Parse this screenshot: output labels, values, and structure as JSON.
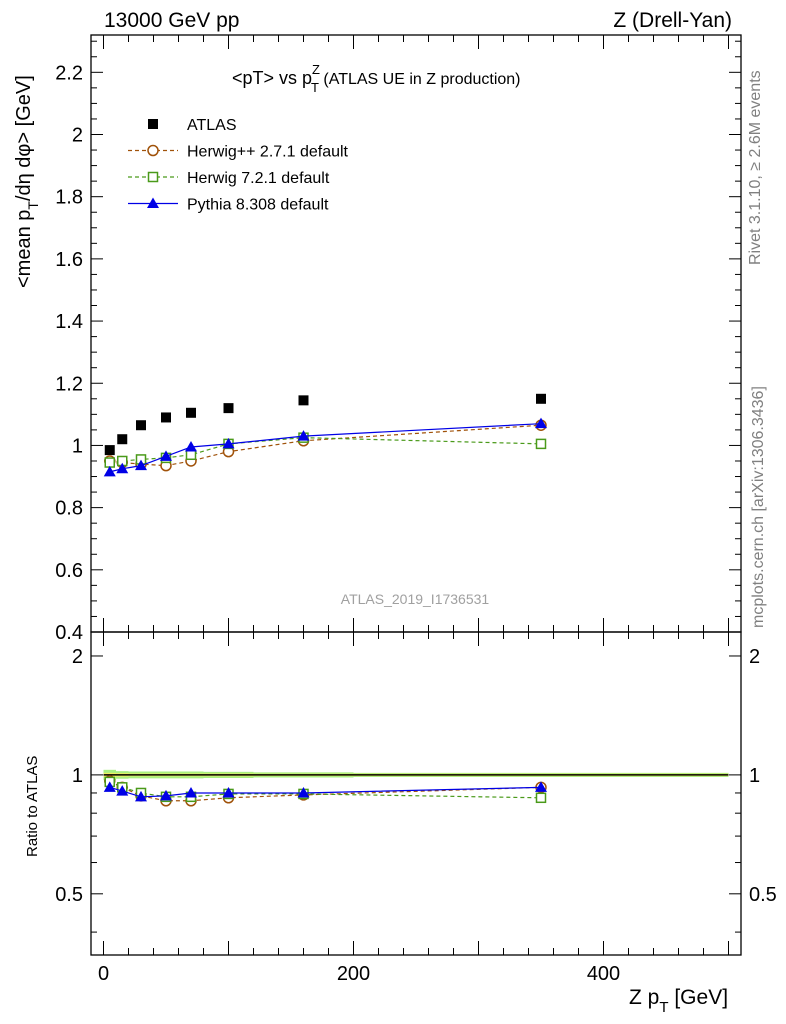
{
  "header": {
    "left": "13000 GeV pp",
    "right": "Z (Drell-Yan)"
  },
  "title": {
    "main": "<pT> vs p",
    "sup": "Z",
    "sub": "T",
    "suffix": " (ATLAS UE in Z production)"
  },
  "side_labels": {
    "rivet": "Rivet 3.1.10, ≥ 2.6M events",
    "mcplots": "mcplots.cern.ch [arXiv:1306.3436]"
  },
  "watermark": "ATLAS_2019_I1736531",
  "chart_data": [
    {
      "type": "line",
      "panel": "main",
      "ylabel": "<mean p_T/dη dφ> [GeV]",
      "ylabel_parts": [
        "<mean p",
        "T",
        "/dη dφ> [GeV]"
      ],
      "xlim": [
        -10,
        510
      ],
      "ylim": [
        0.4,
        2.32
      ],
      "y_ticks": [
        0.4,
        0.6,
        0.8,
        1,
        1.2,
        1.4,
        1.6,
        1.8,
        2,
        2.2
      ],
      "y_tick_labels": [
        "0.4",
        "0.6",
        "0.8",
        "1",
        "1.2",
        "1.4",
        "1.6",
        "1.8",
        "2",
        "2.2"
      ],
      "legend_position": "top-left",
      "series": [
        {
          "name": "ATLAS",
          "style": "data",
          "color": "#000000",
          "marker": "square-filled",
          "x": [
            5,
            15,
            30,
            50,
            70,
            100,
            160,
            350
          ],
          "y": [
            0.985,
            1.02,
            1.065,
            1.09,
            1.105,
            1.12,
            1.145,
            1.15
          ]
        },
        {
          "name": "Herwig++ 2.7.1 default",
          "style": "dashed",
          "color": "#a0520a",
          "marker": "circle-open",
          "x": [
            5,
            15,
            30,
            50,
            70,
            100,
            160,
            350
          ],
          "y": [
            0.95,
            0.945,
            0.94,
            0.935,
            0.95,
            0.98,
            1.015,
            1.065
          ]
        },
        {
          "name": "Herwig 7.2.1 default",
          "style": "dashed",
          "color": "#4a9a1a",
          "marker": "square-open",
          "x": [
            5,
            15,
            30,
            50,
            70,
            100,
            160,
            350
          ],
          "y": [
            0.945,
            0.95,
            0.955,
            0.96,
            0.97,
            1.005,
            1.025,
            1.005
          ]
        },
        {
          "name": "Pythia 8.308 default",
          "style": "solid",
          "color": "#0000e6",
          "marker": "triangle-filled",
          "x": [
            5,
            15,
            30,
            50,
            70,
            100,
            160,
            350
          ],
          "y": [
            0.915,
            0.925,
            0.935,
            0.965,
            0.995,
            1.005,
            1.03,
            1.07
          ]
        }
      ]
    },
    {
      "type": "line",
      "panel": "ratio",
      "ylabel": "Ratio to ATLAS",
      "xlabel": "Z p_T [GeV]",
      "xlabel_parts": [
        "Z p",
        "T",
        " [GeV]"
      ],
      "xlim": [
        -10,
        510
      ],
      "ylim": [
        0.35,
        2.3
      ],
      "y_scale": "log",
      "y_ticks": [
        0.5,
        1,
        2
      ],
      "y_tick_labels": [
        "0.5",
        "1",
        "2"
      ],
      "x_ticks": [
        0,
        200,
        400
      ],
      "x_tick_labels": [
        "0",
        "200",
        "400"
      ],
      "band": {
        "x_edges": [
          0,
          10,
          20,
          40,
          60,
          80,
          120,
          200,
          500
        ],
        "inner_half": [
          0.012,
          0.01,
          0.008,
          0.008,
          0.008,
          0.008,
          0.007,
          0.007
        ],
        "outer_half": [
          0.03,
          0.022,
          0.02,
          0.02,
          0.02,
          0.018,
          0.015,
          0.012
        ],
        "inner_color": "#f0f060",
        "outer_color": "#a8f080"
      },
      "series": [
        {
          "name": "Herwig++ 2.7.1 default",
          "style": "dashed",
          "color": "#a0520a",
          "marker": "circle-open",
          "x": [
            5,
            15,
            30,
            50,
            70,
            100,
            160,
            350
          ],
          "y": [
            0.965,
            0.93,
            0.885,
            0.86,
            0.86,
            0.875,
            0.89,
            0.93
          ]
        },
        {
          "name": "Herwig 7.2.1 default",
          "style": "dashed",
          "color": "#4a9a1a",
          "marker": "square-open",
          "x": [
            5,
            15,
            30,
            50,
            70,
            100,
            160,
            350
          ],
          "y": [
            0.96,
            0.93,
            0.9,
            0.88,
            0.88,
            0.895,
            0.895,
            0.875
          ]
        },
        {
          "name": "Pythia 8.308 default",
          "style": "solid",
          "color": "#0000e6",
          "marker": "triangle-filled",
          "x": [
            5,
            15,
            30,
            50,
            70,
            100,
            160,
            350
          ],
          "y": [
            0.93,
            0.91,
            0.88,
            0.885,
            0.9,
            0.9,
            0.9,
            0.93
          ]
        }
      ]
    }
  ]
}
